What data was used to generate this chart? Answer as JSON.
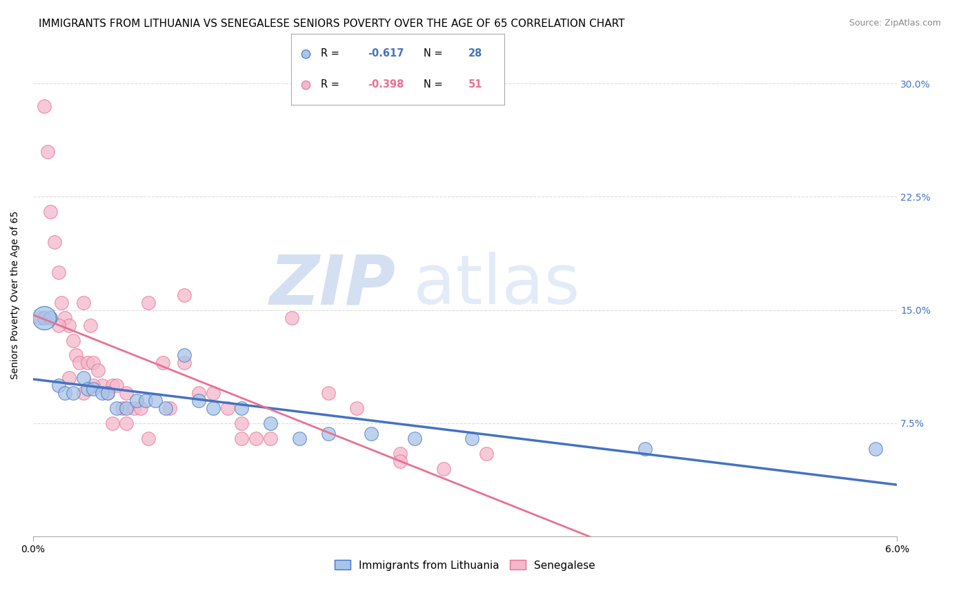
{
  "title": "IMMIGRANTS FROM LITHUANIA VS SENEGALESE SENIORS POVERTY OVER THE AGE OF 65 CORRELATION CHART",
  "source": "Source: ZipAtlas.com",
  "ylabel": "Seniors Poverty Over the Age of 65",
  "y_ticks": [
    0.075,
    0.15,
    0.225,
    0.3
  ],
  "y_tick_labels": [
    "7.5%",
    "15.0%",
    "22.5%",
    "30.0%"
  ],
  "xlim": [
    0.0,
    0.06
  ],
  "ylim": [
    0.0,
    0.32
  ],
  "x_tick_positions": [
    0.0,
    0.06
  ],
  "x_tick_labels": [
    "0.0%",
    "6.0%"
  ],
  "background_color": "#ffffff",
  "grid_color": "#dddddd",
  "watermark_zip": "ZIP",
  "watermark_atlas": "atlas",
  "watermark_color_zip": "#b8cce8",
  "watermark_color_atlas": "#c8d8f0",
  "blue_color": "#a8c4e8",
  "blue_line_color": "#4472c4",
  "pink_color": "#f4b8cc",
  "pink_line_color": "#e87090",
  "legend_r1_val": "-0.617",
  "legend_n1_val": "28",
  "legend_r2_val": "-0.398",
  "legend_n2_val": "51",
  "legend_label1": "Immigrants from Lithuania",
  "legend_label2": "Senegalese",
  "blue_scatter_x": [
    0.0008,
    0.0012,
    0.0018,
    0.0022,
    0.0028,
    0.0035,
    0.0038,
    0.0042,
    0.0048,
    0.0052,
    0.0058,
    0.0065,
    0.0072,
    0.0078,
    0.0085,
    0.0092,
    0.0105,
    0.0115,
    0.0125,
    0.0145,
    0.0165,
    0.0185,
    0.0205,
    0.0235,
    0.0265,
    0.0305,
    0.0425,
    0.0585
  ],
  "blue_scatter_y": [
    0.145,
    0.145,
    0.1,
    0.095,
    0.095,
    0.105,
    0.098,
    0.098,
    0.095,
    0.095,
    0.085,
    0.085,
    0.09,
    0.09,
    0.09,
    0.085,
    0.12,
    0.09,
    0.085,
    0.085,
    0.075,
    0.065,
    0.068,
    0.068,
    0.065,
    0.065,
    0.058,
    0.058
  ],
  "pink_scatter_x": [
    0.0005,
    0.0008,
    0.001,
    0.0012,
    0.0015,
    0.0018,
    0.002,
    0.0022,
    0.0025,
    0.0028,
    0.003,
    0.0032,
    0.0035,
    0.0038,
    0.004,
    0.0042,
    0.0045,
    0.0048,
    0.0052,
    0.0055,
    0.0058,
    0.0062,
    0.0065,
    0.007,
    0.0075,
    0.008,
    0.009,
    0.0095,
    0.0105,
    0.0115,
    0.0125,
    0.0135,
    0.0145,
    0.0155,
    0.0165,
    0.018,
    0.0205,
    0.0225,
    0.0255,
    0.0285,
    0.0315,
    0.0018,
    0.0025,
    0.0035,
    0.0042,
    0.0055,
    0.0065,
    0.008,
    0.0105,
    0.0145,
    0.0255
  ],
  "pink_scatter_y": [
    0.145,
    0.285,
    0.255,
    0.215,
    0.195,
    0.175,
    0.155,
    0.145,
    0.14,
    0.13,
    0.12,
    0.115,
    0.155,
    0.115,
    0.14,
    0.115,
    0.11,
    0.1,
    0.095,
    0.1,
    0.1,
    0.085,
    0.095,
    0.085,
    0.085,
    0.155,
    0.115,
    0.085,
    0.115,
    0.095,
    0.095,
    0.085,
    0.075,
    0.065,
    0.065,
    0.145,
    0.095,
    0.085,
    0.055,
    0.045,
    0.055,
    0.14,
    0.105,
    0.095,
    0.1,
    0.075,
    0.075,
    0.065,
    0.16,
    0.065,
    0.05
  ],
  "title_fontsize": 11,
  "axis_label_fontsize": 10,
  "tick_fontsize": 10,
  "source_fontsize": 9
}
